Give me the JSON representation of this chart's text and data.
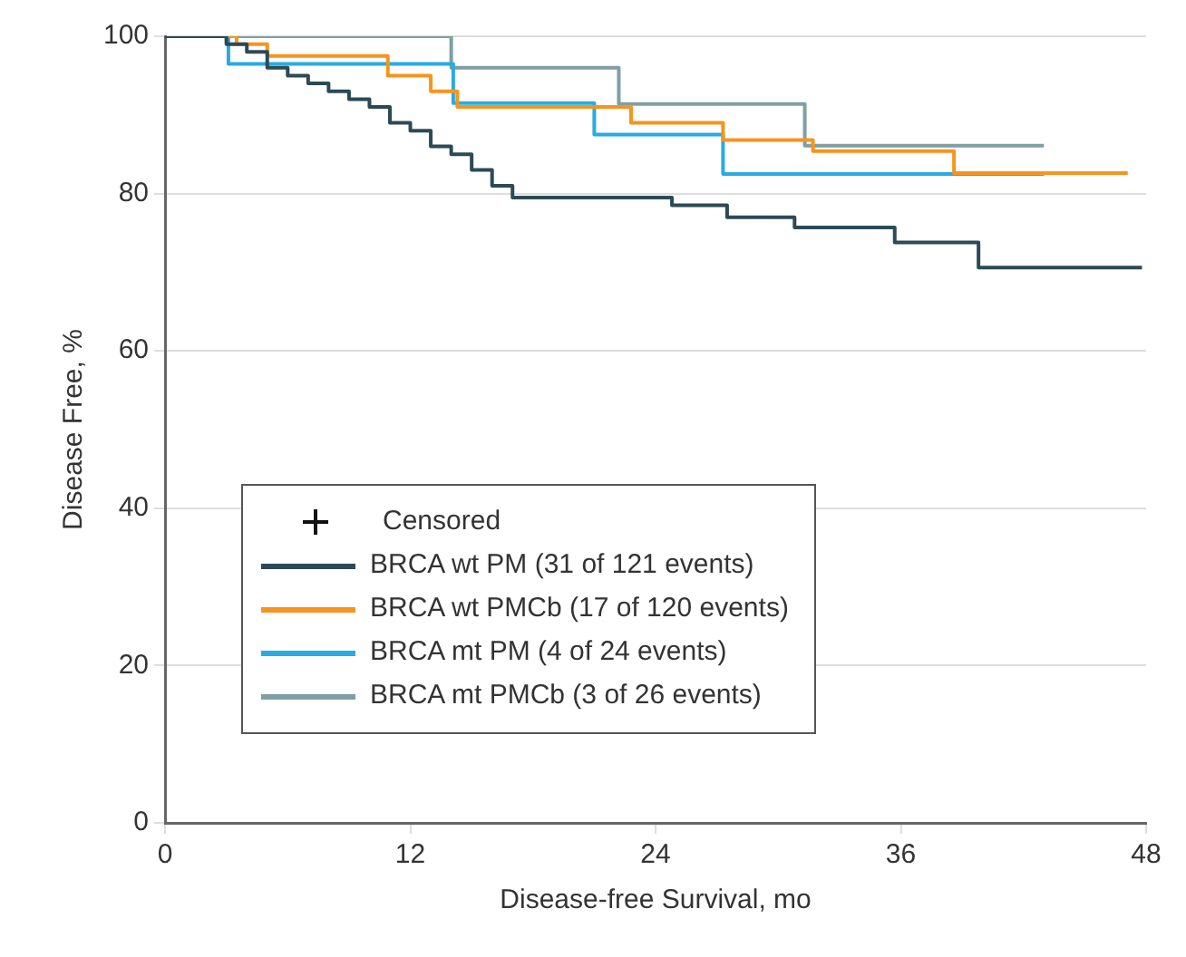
{
  "chart_data": {
    "type": "step",
    "xlabel": "Disease-free Survival, mo",
    "ylabel": "Disease Free, %",
    "xlim": [
      0,
      48
    ],
    "xticks": [
      0,
      12,
      24,
      36,
      48
    ],
    "ylim": [
      0,
      100
    ],
    "yticks": [
      0,
      20,
      40,
      60,
      80,
      100
    ],
    "grid": "y",
    "legend": "bottom left",
    "legend_title": "Censored",
    "marker": "none",
    "line_style": "solid",
    "series": [
      {
        "name": "BRCA wt PM (31 of 121 events)",
        "color": "#2b4a55",
        "x": [
          0,
          3,
          4,
          5,
          6,
          7,
          8,
          9,
          10,
          11,
          12,
          13,
          14,
          15,
          16,
          17,
          24.8,
          27.5,
          30.8,
          35.7,
          39.8,
          47.8
        ],
        "values": [
          100,
          99,
          98,
          96,
          95,
          94,
          93,
          92,
          91,
          89,
          88,
          86,
          85,
          83,
          81,
          79.5,
          78.5,
          77,
          75.7,
          73.8,
          70.6,
          70.6
        ]
      },
      {
        "name": "BRCA wt PMCb (17 of 120 events)",
        "color": "#f7941d",
        "x": [
          0,
          3.5,
          5,
          10.9,
          13,
          14.3,
          22.8,
          27.3,
          31.7,
          38.6,
          47.1
        ],
        "values": [
          100,
          99,
          97.5,
          95,
          93,
          91,
          89,
          86.8,
          85.4,
          82.6,
          82.6
        ]
      },
      {
        "name": "BRCA mt PM (4 of 24 events)",
        "color": "#29abe2",
        "x": [
          0,
          3.1,
          14.1,
          21,
          27.3,
          43
        ],
        "values": [
          100,
          96.5,
          91.5,
          87.5,
          82.5,
          82.5
        ]
      },
      {
        "name": "BRCA mt PMCb (3 of 26 events)",
        "color": "#7f9fa5",
        "x": [
          0,
          14,
          22.2,
          31.3,
          43
        ],
        "values": [
          100,
          96,
          91.4,
          86.1,
          86.1
        ]
      }
    ]
  }
}
